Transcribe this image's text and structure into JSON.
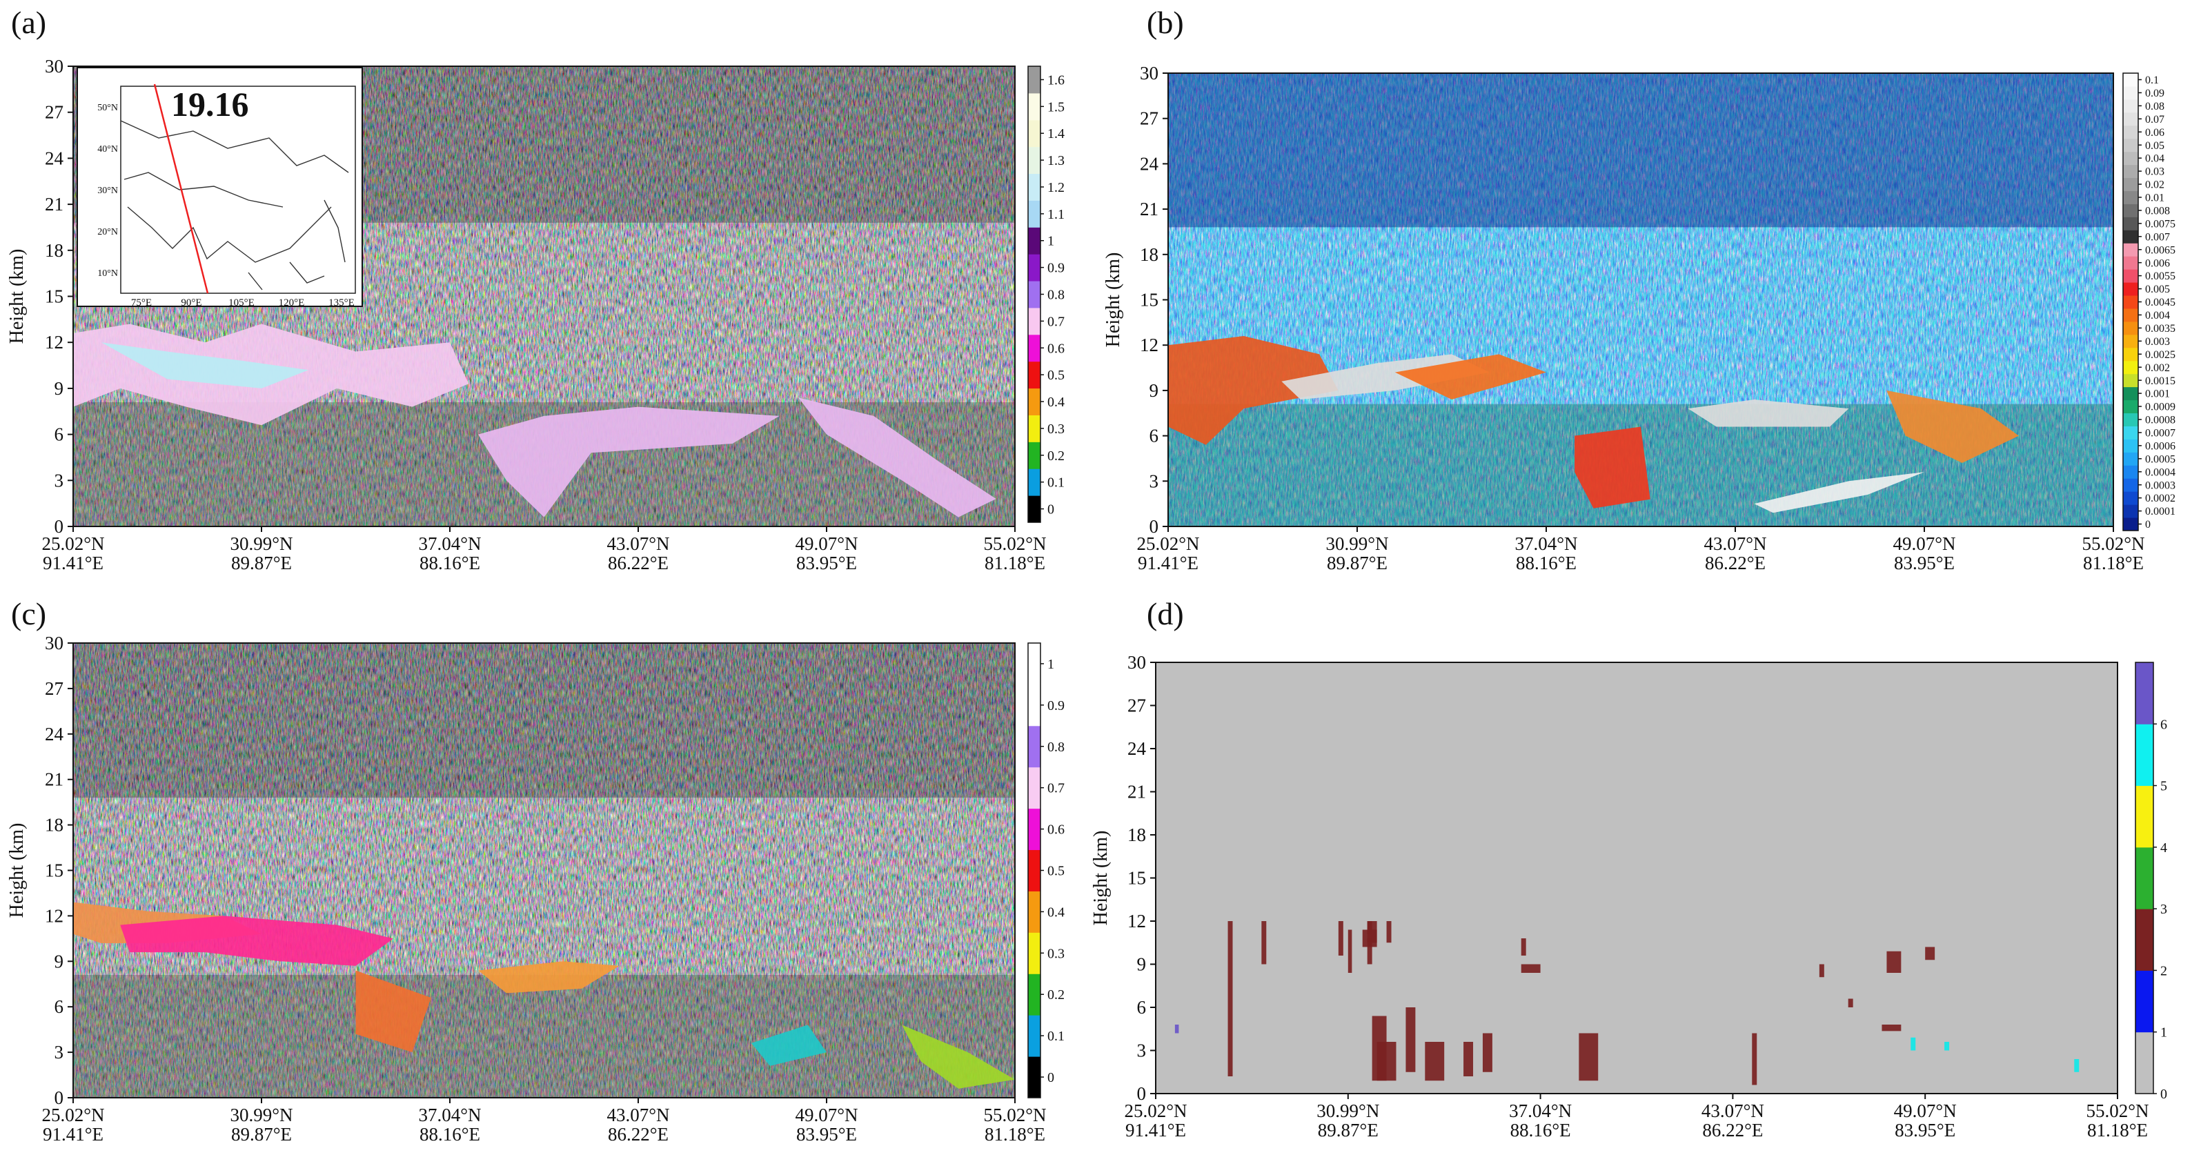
{
  "chart_data": [
    {
      "type": "heatmap",
      "panel": "(a)",
      "ylabel": "Height (km)",
      "ylim": [
        0,
        30
      ],
      "yticks": [
        0,
        3,
        6,
        9,
        12,
        15,
        18,
        21,
        24,
        27,
        30
      ],
      "xticks_lat": [
        "25.02°N",
        "30.99°N",
        "37.04°N",
        "43.07°N",
        "49.07°N",
        "55.02°N"
      ],
      "xticks_lon": [
        "91.41°E",
        "89.87°E",
        "88.16°E",
        "86.22°E",
        "83.95°E",
        "81.18°E"
      ],
      "colorbar": {
        "ticks": [
          0,
          0.1,
          0.2,
          0.3,
          0.4,
          0.5,
          0.6,
          0.7,
          0.8,
          0.9,
          1,
          1.1,
          1.2,
          1.3,
          1.4,
          1.5,
          1.6
        ],
        "colors": [
          "#000000",
          "#0a9ee0",
          "#22b422",
          "#f2ee10",
          "#f59a10",
          "#ee1111",
          "#ee10d8",
          "#f8c8f0",
          "#a070f0",
          "#8a18c8",
          "#5a0878",
          "#a8d8f4",
          "#c8ecf6",
          "#e6f5e4",
          "#f6f6d2",
          "#fbfbe6",
          "#9a9a9a"
        ],
        "label_position": "center"
      },
      "inset": {
        "label": "19.16",
        "lat_ticks": [
          "10°N",
          "20°N",
          "30°N",
          "40°N",
          "50°N"
        ],
        "lon_ticks": [
          "75°E",
          "90°E",
          "105°E",
          "120°E",
          "135°E"
        ]
      }
    },
    {
      "type": "heatmap",
      "panel": "(b)",
      "ylabel": "Height (km)",
      "ylim": [
        0,
        30
      ],
      "yticks": [
        0,
        3,
        6,
        9,
        12,
        15,
        18,
        21,
        24,
        27,
        30
      ],
      "xticks_lat": [
        "25.02°N",
        "30.99°N",
        "37.04°N",
        "43.07°N",
        "49.07°N",
        "55.02°N"
      ],
      "xticks_lon": [
        "91.41°E",
        "89.87°E",
        "88.16°E",
        "86.22°E",
        "83.95°E",
        "81.18°E"
      ],
      "colorbar": {
        "ticks": [
          0,
          0.0001,
          0.0002,
          0.0003,
          0.0004,
          0.0005,
          0.0006,
          0.0007,
          0.0008,
          0.0009,
          0.001,
          0.0015,
          0.002,
          0.0025,
          0.003,
          0.0035,
          0.004,
          0.0045,
          0.005,
          0.0055,
          0.006,
          0.0065,
          0.007,
          0.0075,
          0.008,
          0.01,
          0.02,
          0.03,
          0.04,
          0.05,
          0.06,
          0.07,
          0.08,
          0.09,
          0.1
        ],
        "colors": [
          "#0a1e8c",
          "#0c34b0",
          "#0f4ad0",
          "#1466e6",
          "#1a86f0",
          "#22a6f4",
          "#2cc2f4",
          "#3ad6ee",
          "#28c8b4",
          "#1aaa6a",
          "#14905a",
          "#c8e02a",
          "#f2f010",
          "#f8d20c",
          "#f8b010",
          "#f69010",
          "#f47014",
          "#f44818",
          "#ee2020",
          "#f0506a",
          "#f07890",
          "#f49ab0",
          "#303030",
          "#585858",
          "#707070",
          "#888888",
          "#9c9c9c",
          "#acacac",
          "#bcbcbc",
          "#cacaca",
          "#d6d6d6",
          "#e2e2e2",
          "#ececec",
          "#f4f4f4",
          "#fbfbfb"
        ],
        "label_position": "center"
      }
    },
    {
      "type": "heatmap",
      "panel": "(c)",
      "ylabel": "Height (km)",
      "ylim": [
        0,
        30
      ],
      "yticks": [
        0,
        3,
        6,
        9,
        12,
        15,
        18,
        21,
        24,
        27,
        30
      ],
      "xticks_lat": [
        "25.02°N",
        "30.99°N",
        "37.04°N",
        "43.07°N",
        "49.07°N",
        "55.02°N"
      ],
      "xticks_lon": [
        "91.41°E",
        "89.87°E",
        "88.16°E",
        "86.22°E",
        "83.95°E",
        "81.18°E"
      ],
      "colorbar": {
        "ticks": [
          0,
          0.1,
          0.2,
          0.3,
          0.4,
          0.5,
          0.6,
          0.7,
          0.8,
          0.9,
          1
        ],
        "colors": [
          "#000000",
          "#0aa0e0",
          "#22b422",
          "#f2ee10",
          "#f59a10",
          "#ee1111",
          "#ee10d8",
          "#f8ccf2",
          "#a070f0",
          "#ffffff",
          "#ffffff"
        ],
        "label_position": "center"
      }
    },
    {
      "type": "heatmap",
      "panel": "(d)",
      "ylabel": "Height (km)",
      "ylim": [
        0,
        30
      ],
      "yticks": [
        0,
        3,
        6,
        9,
        12,
        15,
        18,
        21,
        24,
        27,
        30
      ],
      "xticks_lat": [
        "25.02°N",
        "30.99°N",
        "37.04°N",
        "43.07°N",
        "49.07°N",
        "55.02°N"
      ],
      "xticks_lon": [
        "91.41°E",
        "89.87°E",
        "88.16°E",
        "86.22°E",
        "83.95°E",
        "81.18°E"
      ],
      "colorbar": {
        "ticks": [
          0,
          1,
          2,
          3,
          4,
          5,
          6
        ],
        "colors": [
          "#c0c0c0",
          "#0a18f0",
          "#7a2222",
          "#2cb030",
          "#f8f010",
          "#10f0f0",
          "#6a56c8"
        ],
        "label_position": "edge"
      }
    }
  ]
}
